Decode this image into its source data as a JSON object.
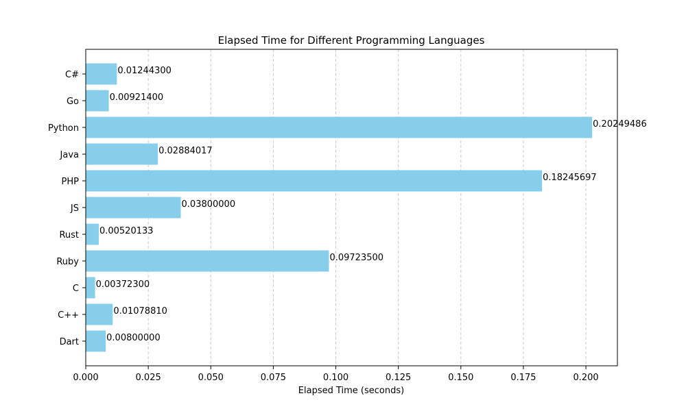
{
  "chart_data": {
    "type": "bar",
    "orientation": "horizontal",
    "title": "Elapsed Time for Different Programming Languages",
    "xlabel": "Elapsed Time (seconds)",
    "ylabel": "",
    "categories": [
      "C#",
      "Go",
      "Python",
      "Java",
      "PHP",
      "JS",
      "Rust",
      "Ruby",
      "C",
      "C++",
      "Dart"
    ],
    "values": [
      0.012443,
      0.009214,
      0.20249486,
      0.02884017,
      0.18245697,
      0.038,
      0.00520133,
      0.097235,
      0.003723,
      0.0107881,
      0.008
    ],
    "value_labels": [
      "0.01244300",
      "0.00921400",
      "0.20249486",
      "0.02884017",
      "0.18245697",
      "0.03800000",
      "0.00520133",
      "0.09723500",
      "0.00372300",
      "0.01078810",
      "0.00800000"
    ],
    "xlim": [
      0,
      0.2126
    ],
    "x_ticks": [
      0,
      0.025,
      0.05,
      0.075,
      0.1,
      0.125,
      0.15,
      0.175,
      0.2
    ],
    "x_tick_labels": [
      "0.000",
      "0.025",
      "0.050",
      "0.075",
      "0.100",
      "0.125",
      "0.150",
      "0.175",
      "0.200"
    ],
    "grid": "x-dashed",
    "bar_color": "#87CEEB",
    "grid_color": "#c8c8c8"
  }
}
